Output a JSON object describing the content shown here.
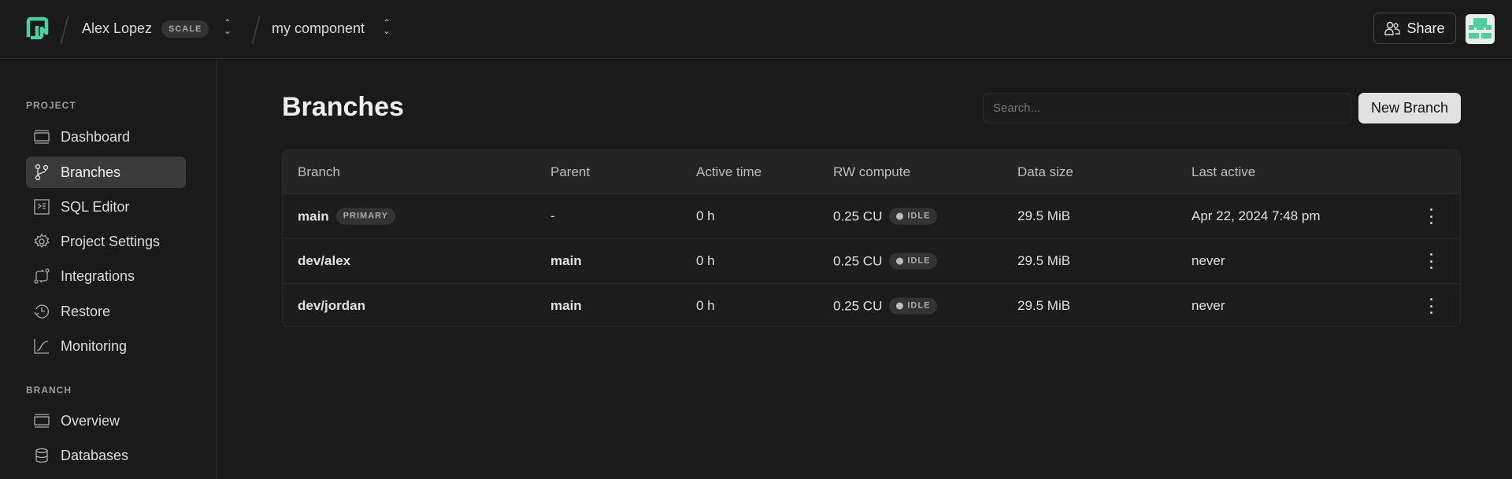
{
  "header": {
    "workspace": "Alex Lopez",
    "plan_badge": "SCALE",
    "project": "my component",
    "share_label": "Share",
    "brand_color": "#4ecf9c"
  },
  "sidebar": {
    "project_section": "PROJECT",
    "project_items": [
      {
        "label": "Dashboard",
        "icon": "monitor-icon"
      },
      {
        "label": "Branches",
        "icon": "branch-icon",
        "active": true
      },
      {
        "label": "SQL Editor",
        "icon": "terminal-icon"
      },
      {
        "label": "Project Settings",
        "icon": "gear-icon"
      },
      {
        "label": "Integrations",
        "icon": "integrations-icon"
      },
      {
        "label": "Restore",
        "icon": "history-icon"
      },
      {
        "label": "Monitoring",
        "icon": "chart-line-icon"
      }
    ],
    "branch_section": "BRANCH",
    "branch_items": [
      {
        "label": "Overview",
        "icon": "monitor-icon"
      },
      {
        "label": "Databases",
        "icon": "database-icon"
      }
    ]
  },
  "main": {
    "title": "Branches",
    "search_placeholder": "Search...",
    "new_branch_label": "New Branch",
    "columns": [
      "Branch",
      "Parent",
      "Active time",
      "RW compute",
      "Data size",
      "Last active"
    ],
    "rows": [
      {
        "branch": "main",
        "badge": "PRIMARY",
        "parent": "-",
        "active_time": "0 h",
        "compute": "0.25 CU",
        "status": "IDLE",
        "size": "29.5 MiB",
        "last_active": "Apr 22, 2024 7:48 pm"
      },
      {
        "branch": "dev/alex",
        "parent": "main",
        "active_time": "0 h",
        "compute": "0.25 CU",
        "status": "IDLE",
        "size": "29.5 MiB",
        "last_active": "never"
      },
      {
        "branch": "dev/jordan",
        "parent": "main",
        "active_time": "0 h",
        "compute": "0.25 CU",
        "status": "IDLE",
        "size": "29.5 MiB",
        "last_active": "never"
      }
    ]
  }
}
